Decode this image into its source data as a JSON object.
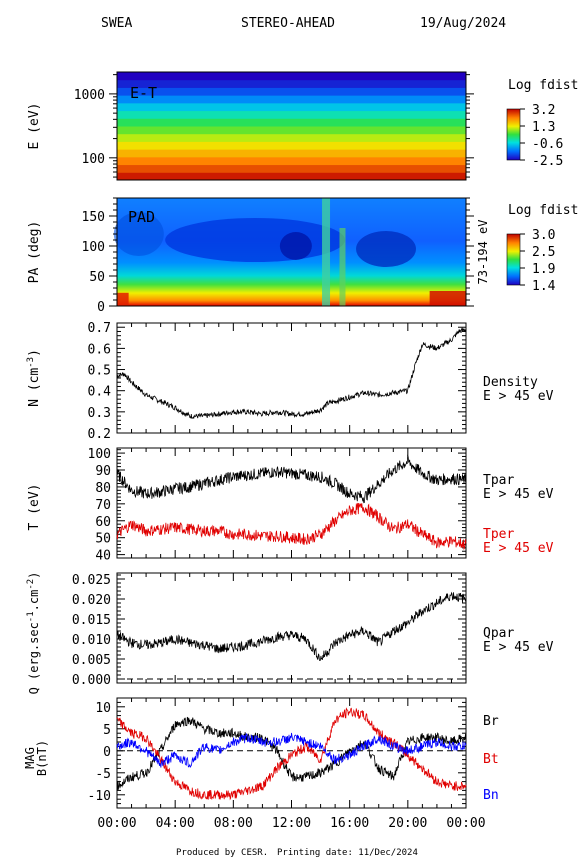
{
  "header": {
    "instrument": "SWEA",
    "spacecraft": "STEREO-AHEAD",
    "date": "19/Aug/2024"
  },
  "footer": {
    "produced": "Produced by CESR.",
    "printing": "Printing date: 11/Dec/2024"
  },
  "colors": {
    "black_trace": "#000000",
    "red_trace": "#e00000",
    "blue_trace": "#0000ff",
    "text": "#000000"
  },
  "chart_data": [
    {
      "type": "heatmap",
      "title": "E-T",
      "ylabel": "E (eV)",
      "yscale": "log",
      "ylim": [
        45,
        2200
      ],
      "yticks": [
        100,
        1000
      ],
      "ytick_labels": [
        "100",
        "1000"
      ],
      "colorbar": {
        "title": "Log fdist",
        "ticks": [
          "3.2",
          "1.3",
          "-0.6",
          "-2.5"
        ],
        "range": [
          -2.5,
          3.2
        ]
      },
      "energy_rows_desc": "row values of log fdist from low to high energy",
      "rows": [
        3.0,
        2.6,
        2.2,
        1.8,
        1.4,
        1.0,
        0.6,
        0.2,
        -0.3,
        -0.8,
        -1.3,
        -1.8,
        -2.2,
        -2.5
      ]
    },
    {
      "type": "heatmap",
      "title": "PAD",
      "ylabel": "PA (deg)",
      "ylim": [
        0,
        180
      ],
      "yticks": [
        0,
        50,
        100,
        150
      ],
      "side_label": "73-194 eV",
      "colorbar": {
        "title": "Log fdist",
        "ticks": [
          "3.0",
          "2.5",
          "1.9",
          "1.4"
        ],
        "range": [
          1.4,
          3.0
        ]
      }
    },
    {
      "type": "line",
      "ylabel": "N (cm",
      "ylabel_exp": "-3",
      "ylabel_close": ")",
      "ylim": [
        0.2,
        0.72
      ],
      "yticks": [
        0.2,
        0.3,
        0.4,
        0.5,
        0.6,
        0.7
      ],
      "series": [
        {
          "name": "Density",
          "sub": "E > 45 eV",
          "x": [
            0,
            0.5,
            1,
            2,
            3,
            4,
            5,
            6,
            7,
            8,
            9,
            10,
            11,
            12,
            13,
            14,
            14.5,
            15,
            16,
            17,
            18,
            19,
            20,
            20.5,
            21,
            22,
            23,
            23.5,
            24
          ],
          "values": [
            0.47,
            0.48,
            0.44,
            0.38,
            0.35,
            0.32,
            0.28,
            0.28,
            0.29,
            0.3,
            0.3,
            0.29,
            0.3,
            0.29,
            0.29,
            0.31,
            0.34,
            0.35,
            0.37,
            0.39,
            0.38,
            0.39,
            0.4,
            0.52,
            0.62,
            0.6,
            0.64,
            0.68,
            0.69
          ]
        }
      ]
    },
    {
      "type": "line",
      "ylabel": "T (eV)",
      "ylim": [
        38,
        103
      ],
      "yticks": [
        40,
        50,
        60,
        70,
        80,
        90,
        100
      ],
      "series": [
        {
          "name": "Tpar",
          "sub": "E > 45 eV",
          "color": "#000000",
          "x": [
            0,
            1,
            2,
            3,
            4,
            5,
            6,
            7,
            8,
            9,
            10,
            11,
            12,
            13,
            14,
            15,
            16,
            17,
            18,
            19,
            20,
            21,
            22,
            23,
            24
          ],
          "values": [
            88,
            78,
            76,
            77,
            79,
            80,
            82,
            84,
            86,
            87,
            88,
            89,
            88,
            87,
            86,
            82,
            76,
            74,
            82,
            90,
            95,
            88,
            84,
            85,
            84
          ]
        },
        {
          "name": "Tper",
          "sub": "E > 45 eV",
          "color": "#e00000",
          "x": [
            0,
            1,
            2,
            3,
            4,
            5,
            6,
            7,
            8,
            9,
            10,
            11,
            12,
            13,
            14,
            15,
            16,
            17,
            18,
            19,
            20,
            21,
            22,
            23,
            24
          ],
          "values": [
            52,
            58,
            54,
            55,
            56,
            55,
            54,
            54,
            52,
            52,
            51,
            51,
            50,
            49,
            52,
            60,
            66,
            68,
            62,
            55,
            58,
            52,
            47,
            48,
            46
          ]
        }
      ]
    },
    {
      "type": "line",
      "ylabel": "Q (erg.sec",
      "ylabel_exp": "-1",
      "ylabel_mid": ".cm",
      "ylabel_exp2": "-2",
      "ylabel_close": ")",
      "ylim": [
        -0.001,
        0.0265
      ],
      "yticks": [
        0,
        0.005,
        0.01,
        0.015,
        0.02,
        0.025
      ],
      "ytick_labels": [
        "0.000",
        "0.005",
        "0.010",
        "0.015",
        "0.020",
        "0.025"
      ],
      "series": [
        {
          "name": "Qpar",
          "sub": "E > 45 eV",
          "x": [
            0,
            1,
            2,
            3,
            4,
            5,
            6,
            7,
            8,
            9,
            10,
            11,
            12,
            13,
            14,
            15,
            16,
            17,
            18,
            19,
            20,
            21,
            22,
            23,
            24
          ],
          "values": [
            0.011,
            0.009,
            0.0085,
            0.009,
            0.01,
            0.009,
            0.0085,
            0.0075,
            0.008,
            0.0085,
            0.0095,
            0.0105,
            0.011,
            0.01,
            0.005,
            0.009,
            0.011,
            0.012,
            0.009,
            0.012,
            0.014,
            0.017,
            0.019,
            0.021,
            0.02
          ]
        }
      ],
      "zero_line": true
    },
    {
      "type": "line",
      "ylabel": "MAG",
      "ylabel2": "B(nT)",
      "ylim": [
        -13,
        12
      ],
      "yticks": [
        -10,
        -5,
        0,
        5,
        10
      ],
      "xticks": [
        "00:00",
        "04:00",
        "08:00",
        "12:00",
        "16:00",
        "20:00",
        "00:00"
      ],
      "series": [
        {
          "name": "Br",
          "color": "#000000",
          "x": [
            0,
            1,
            2,
            3,
            4,
            5,
            6,
            7,
            8,
            9,
            10,
            11,
            12,
            13,
            14,
            15,
            16,
            17,
            18,
            19,
            20,
            21,
            22,
            23,
            24
          ],
          "values": [
            -8,
            -6,
            -5,
            0,
            6,
            7,
            5,
            4,
            4,
            3,
            3,
            0,
            -6,
            -6,
            -5,
            -3,
            0,
            2,
            -4,
            -6,
            2,
            3,
            3,
            2,
            3
          ]
        },
        {
          "name": "Bt",
          "color": "#e00000",
          "x": [
            0,
            1,
            2,
            3,
            4,
            5,
            6,
            7,
            8,
            9,
            10,
            11,
            12,
            13,
            14,
            15,
            16,
            17,
            18,
            19,
            20,
            21,
            22,
            23,
            24
          ],
          "values": [
            7,
            4,
            3,
            -2,
            -7,
            -9,
            -10,
            -10,
            -10,
            -9,
            -8,
            -4,
            -1,
            1,
            -2,
            7,
            9,
            8,
            4,
            2,
            -1,
            -4,
            -7,
            -8,
            -8
          ]
        },
        {
          "name": "Bn",
          "color": "#0000ff",
          "x": [
            0,
            1,
            2,
            3,
            4,
            5,
            6,
            7,
            8,
            9,
            10,
            11,
            12,
            13,
            14,
            15,
            16,
            17,
            18,
            19,
            20,
            21,
            22,
            23,
            24
          ],
          "values": [
            1,
            2,
            0,
            -3,
            -1,
            -3,
            1,
            0,
            2,
            3,
            2,
            2,
            3,
            2,
            1,
            -2,
            -1,
            1,
            3,
            1,
            0,
            1,
            2,
            1,
            1
          ]
        }
      ],
      "zero_line": true
    }
  ]
}
